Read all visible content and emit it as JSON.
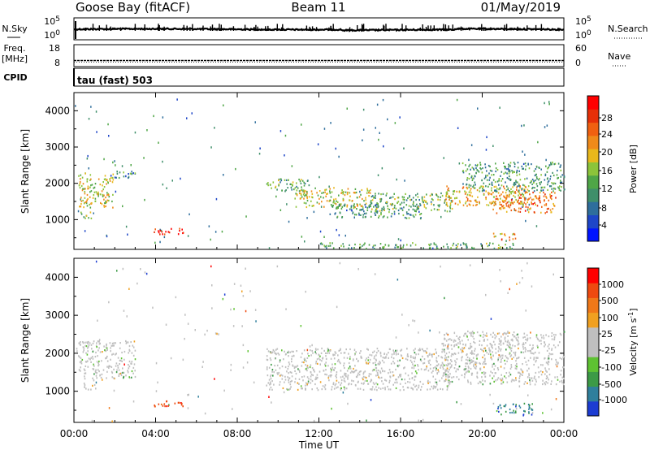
{
  "header": {
    "station": "Goose Bay (fitACF)",
    "beam": "Beam 11",
    "date": "01/May/2019"
  },
  "labels": {
    "nsky": "N.Sky",
    "nsky_top": "10^5",
    "nsky_bottom": "10^0",
    "nsearch": "N.Search",
    "nsearch_top": "10^5",
    "nsearch_bottom": "10^0",
    "freq_line1": "Freq.",
    "freq_line2": "[MHz]",
    "freq_top": "18",
    "freq_bottom": "8",
    "nave": "Nave",
    "nave_top": "60",
    "nave_bottom": "0",
    "cpid": "CPID",
    "cpid_value": "tau (fast) 503"
  },
  "chart_data": [
    {
      "type": "heatmap",
      "title": "",
      "xlabel": "Time UT",
      "ylabel": "Slant Range [km]",
      "x_ticks": [
        "00:00",
        "04:00",
        "08:00",
        "12:00",
        "16:00",
        "20:00",
        "00:00"
      ],
      "x_range_hours": [
        0,
        24
      ],
      "y_ticks": [
        1000,
        2000,
        3000,
        4000
      ],
      "y_range": [
        180,
        4500
      ],
      "colorbar": {
        "label": "Power [dB]",
        "ticks": [
          "4",
          "8",
          "12",
          "16",
          "20",
          "24",
          "28"
        ],
        "colors": [
          "#0014ff",
          "#1e46c8",
          "#2e6e9c",
          "#3f8f6a",
          "#4fa647",
          "#8cc43a",
          "#e8b81c",
          "#ef8a1a",
          "#f06010",
          "#e63008",
          "#ff0000"
        ]
      },
      "regions": [
        {
          "t0": 0.2,
          "t1": 1.9,
          "r0": 1350,
          "r1": 2300,
          "level": 0.55
        },
        {
          "t0": 1.9,
          "t1": 3.0,
          "r0": 2150,
          "r1": 2350,
          "level": 0.3
        },
        {
          "t0": 0.3,
          "t1": 1.1,
          "r0": 1050,
          "r1": 1230,
          "level": 0.4
        },
        {
          "t0": 3.9,
          "t1": 5.4,
          "r0": 600,
          "r1": 780,
          "level": 0.92
        },
        {
          "t0": 9.4,
          "t1": 11.6,
          "r0": 1800,
          "r1": 2150,
          "level": 0.4
        },
        {
          "t0": 10.8,
          "t1": 14.5,
          "r0": 1350,
          "r1": 1900,
          "level": 0.55
        },
        {
          "t0": 12.5,
          "t1": 17.0,
          "r0": 1050,
          "r1": 1450,
          "level": 0.3
        },
        {
          "t0": 14.5,
          "t1": 18.5,
          "r0": 1250,
          "r1": 1750,
          "level": 0.42
        },
        {
          "t0": 18.0,
          "t1": 22.2,
          "r0": 1400,
          "r1": 1950,
          "level": 0.62
        },
        {
          "t0": 20.5,
          "t1": 23.6,
          "r0": 1200,
          "r1": 1800,
          "level": 0.75
        },
        {
          "t0": 19.0,
          "t1": 24.0,
          "r0": 1800,
          "r1": 2600,
          "level": 0.35
        },
        {
          "t0": 20.5,
          "t1": 21.6,
          "r0": 450,
          "r1": 650,
          "level": 0.7
        },
        {
          "t0": 12.0,
          "t1": 21.5,
          "r0": 220,
          "r1": 380,
          "level": 0.4
        }
      ]
    },
    {
      "type": "heatmap",
      "title": "",
      "xlabel": "Time UT",
      "ylabel": "Slant Range [km]",
      "x_ticks": [
        "00:00",
        "04:00",
        "08:00",
        "12:00",
        "16:00",
        "20:00",
        "00:00"
      ],
      "x_range_hours": [
        0,
        24
      ],
      "y_ticks": [
        1000,
        2000,
        3000,
        4000
      ],
      "y_range": [
        180,
        4500
      ],
      "colorbar": {
        "label": "Velocity [m s^-1]",
        "ticks": [
          "1000",
          "500",
          "100",
          "25",
          "-25",
          "-100",
          "-500",
          "-1000"
        ],
        "colors": [
          "#1c3cd2",
          "#2f7f9c",
          "#3c9a46",
          "#5ec232",
          "#bfbfbf",
          "#bfbfbf",
          "#f0a020",
          "#f07818",
          "#ee4a10",
          "#ff0000"
        ]
      },
      "regions": [
        {
          "t0": 0.2,
          "t1": 3.0,
          "r0": 1350,
          "r1": 2350,
          "level": 0.45
        },
        {
          "t0": 0.3,
          "t1": 1.1,
          "r0": 1050,
          "r1": 1230,
          "level": 0.45
        },
        {
          "t0": 3.9,
          "t1": 5.4,
          "r0": 600,
          "r1": 780,
          "level": 0.85
        },
        {
          "t0": 9.4,
          "t1": 18.5,
          "r0": 1050,
          "r1": 2150,
          "level": 0.45
        },
        {
          "t0": 18.0,
          "t1": 24.0,
          "r0": 1200,
          "r1": 2600,
          "level": 0.48
        },
        {
          "t0": 20.5,
          "t1": 22.5,
          "r0": 400,
          "r1": 700,
          "level": 0.2
        }
      ]
    }
  ]
}
